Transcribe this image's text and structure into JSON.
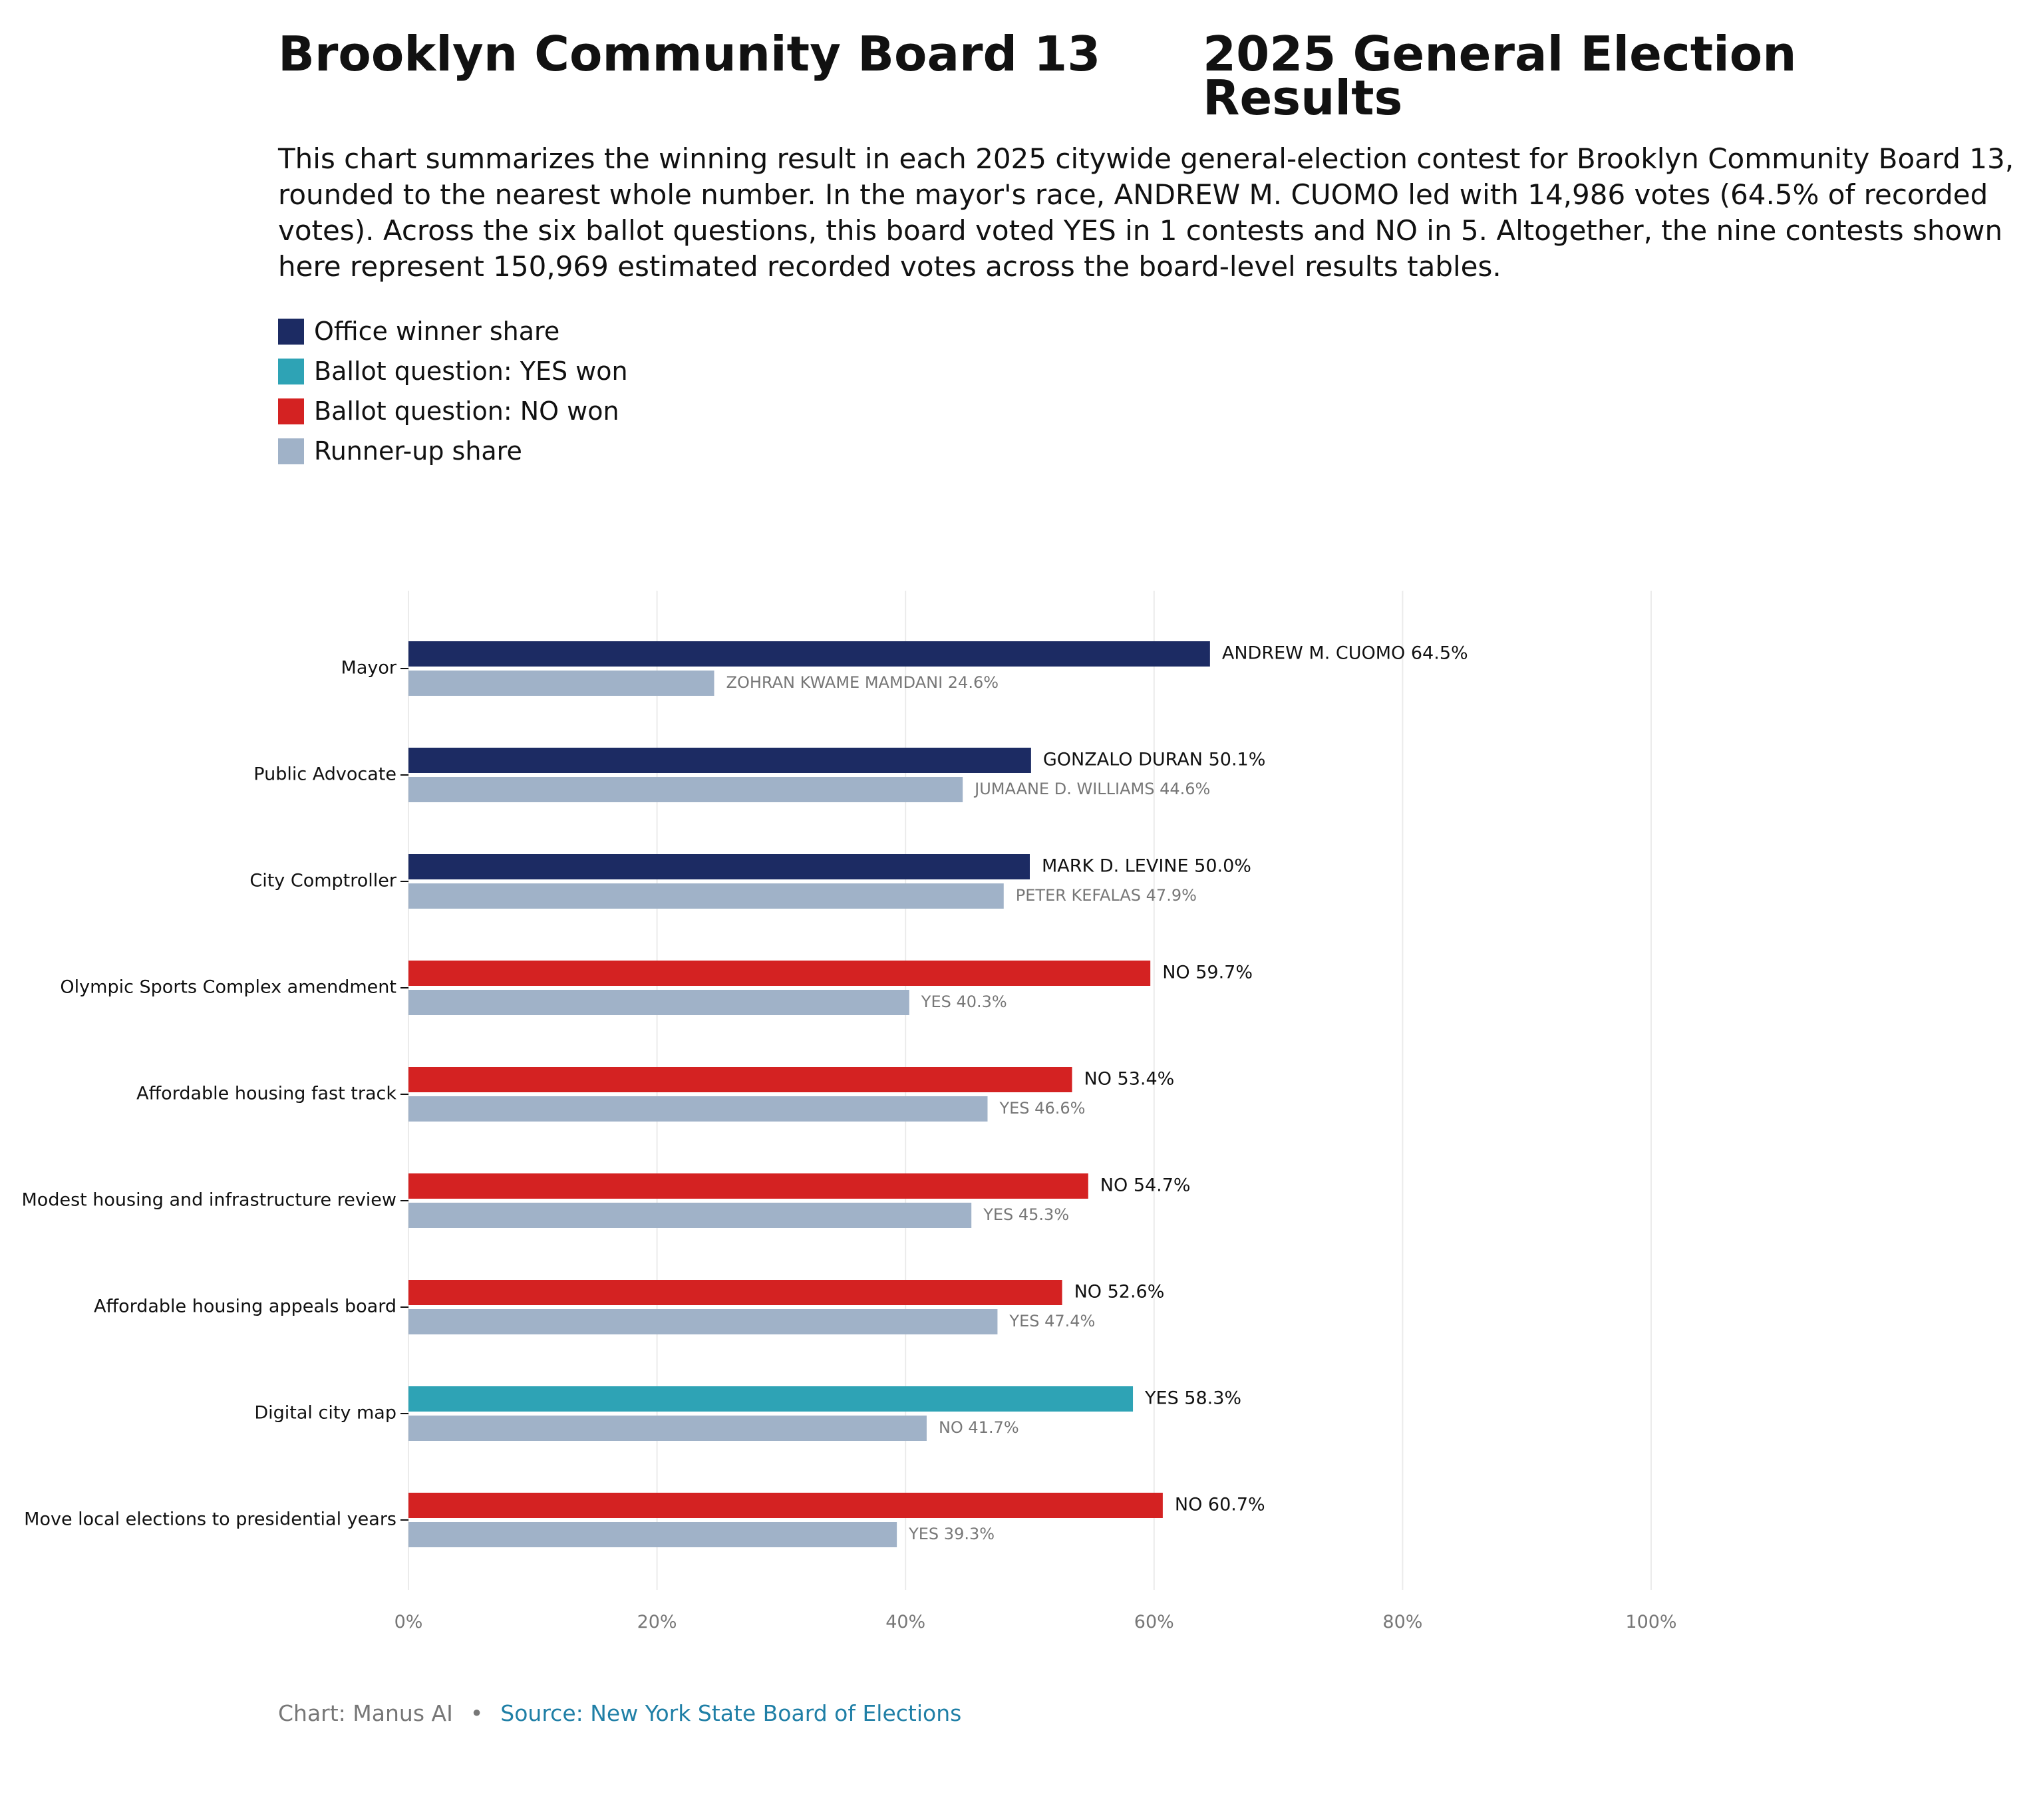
{
  "title": {
    "left": "Brooklyn Community Board 13",
    "right": "2025 General Election Results"
  },
  "description": "This chart summarizes the winning result in each 2025 citywide general-election contest for Brooklyn Community Board 13, rounded to the nearest whole number. In the mayor's race, ANDREW M. CUOMO led with 14,986 votes (64.5% of recorded votes). Across the six ballot questions, this board voted YES in 1 contests and NO in 5. Altogether, the nine contests shown here represent 150,969 estimated recorded votes across the board-level results tables.",
  "legend": [
    {
      "label": "Office winner share",
      "color": "#1c2b63"
    },
    {
      "label": "Ballot question: YES won",
      "color": "#2ea3b5"
    },
    {
      "label": "Ballot question: NO won",
      "color": "#d42222"
    },
    {
      "label": "Runner-up share",
      "color": "#a0b2c8"
    }
  ],
  "chart_data": {
    "type": "bar",
    "orientation": "horizontal",
    "xlim": [
      0,
      100
    ],
    "xticks": [
      "0%",
      "20%",
      "40%",
      "60%",
      "80%",
      "100%"
    ],
    "grid": "vertical",
    "categories": [
      "Mayor",
      "Public Advocate",
      "City Comptroller",
      "Olympic Sports Complex amendment",
      "Affordable housing fast track",
      "Modest housing and infrastructure review",
      "Affordable housing appeals board",
      "Digital city map",
      "Move local elections to presidential years"
    ],
    "winner": {
      "values": [
        64.5,
        50.1,
        50.0,
        59.7,
        53.4,
        54.7,
        52.6,
        58.3,
        60.7
      ],
      "labels": [
        "ANDREW M. CUOMO 64.5%",
        "GONZALO DURAN 50.1%",
        "MARK D. LEVINE 50.0%",
        "NO 59.7%",
        "NO 53.4%",
        "NO 54.7%",
        "NO 52.6%",
        "YES 58.3%",
        "NO 60.7%"
      ],
      "kind": [
        "office",
        "office",
        "office",
        "no",
        "no",
        "no",
        "no",
        "yes",
        "no"
      ]
    },
    "runner_up": {
      "values": [
        24.6,
        44.6,
        47.9,
        40.3,
        46.6,
        45.3,
        47.4,
        41.7,
        39.3
      ],
      "labels": [
        "ZOHRAN KWAME MAMDANI 24.6%",
        "JUMAANE D. WILLIAMS 44.6%",
        "PETER KEFALAS 47.9%",
        "YES 40.3%",
        "YES 46.6%",
        "YES 45.3%",
        "YES 47.4%",
        "NO 41.7%",
        "YES 39.3%"
      ]
    },
    "colors": {
      "office": "#1c2b63",
      "yes": "#2ea3b5",
      "no": "#d42222",
      "runner_up": "#a0b2c8",
      "grid": "#ebebeb",
      "tick_text": "#777777",
      "runner_label": "#777777"
    }
  },
  "footer": {
    "credit": "Chart: Manus AI",
    "separator": "•",
    "source": "Source: New York State Board of Elections"
  }
}
